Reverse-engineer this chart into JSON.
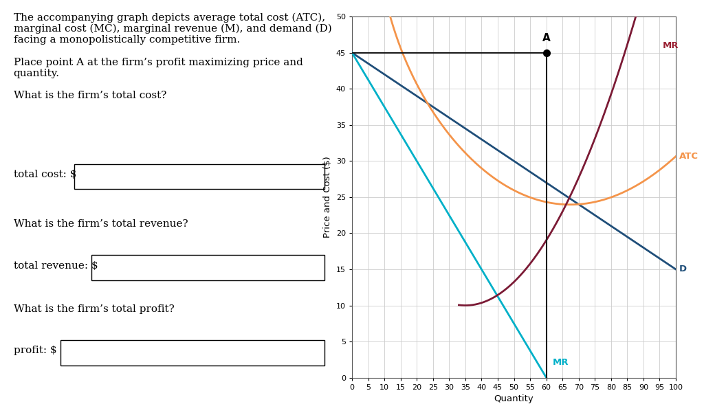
{
  "xlabel": "Quantity",
  "ylabel": "Price and Cost ($)",
  "xlim": [
    0,
    100
  ],
  "ylim": [
    0,
    50
  ],
  "xticks": [
    0,
    5,
    10,
    15,
    20,
    25,
    30,
    35,
    40,
    45,
    50,
    55,
    60,
    65,
    70,
    75,
    80,
    85,
    90,
    95,
    100
  ],
  "yticks": [
    0,
    5,
    10,
    15,
    20,
    25,
    30,
    35,
    40,
    45,
    50
  ],
  "demand_color": "#1f4e79",
  "mr_line_color": "#00b0c8",
  "atc_color": "#f4944a",
  "mc_color": "#7b1a35",
  "point_A": [
    60,
    45
  ],
  "hline_color": "#1a1a1a",
  "vline_color": "#1a1a1a",
  "background_color": "#ffffff",
  "grid_color": "#cccccc",
  "label_D_color": "#1f4e79",
  "label_MR_top_color": "#9b2335",
  "label_MR_bot_color": "#00b0c8",
  "label_ATC_color": "#f4944a",
  "text_lines": [
    "The accompanying graph depicts average total cost (ATC),",
    "marginal cost (MC), marginal revenue (M), and demand (D)",
    "facing a monopolistically competitive firm.",
    "",
    "Place point A at the firm’s profit maximizing price and",
    "quantity.",
    "",
    "What is the firm’s total cost?"
  ],
  "text2": "What is the firm’s total revenue?",
  "text3": "What is the firm’s total profit?",
  "label1": "total cost: $",
  "label2": "total revenue: $",
  "label3": "profit: $"
}
